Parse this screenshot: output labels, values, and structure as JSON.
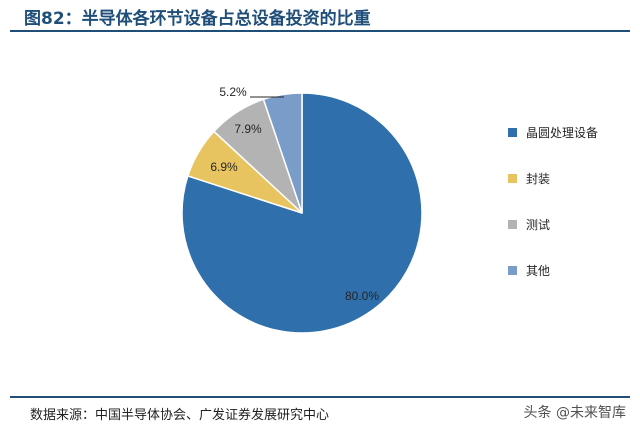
{
  "header": {
    "title": "图82：半导体各环节设备占总设备投资的比重"
  },
  "footer": {
    "source": "数据来源：中国半导体协会、广发证券发展研究中心",
    "watermark": "头条 @未来智库"
  },
  "chart_data": {
    "type": "pie",
    "start": "12 o'clock, clockwise",
    "slices": [
      {
        "name": "晶圆处理设备",
        "value": 80.0,
        "label": "80.0%",
        "color": "#2e6fac"
      },
      {
        "name": "封装",
        "value": 6.9,
        "label": "6.9%",
        "color": "#e8c460"
      },
      {
        "name": "测试",
        "value": 7.9,
        "label": "7.9%",
        "color": "#b3b3b3"
      },
      {
        "name": "其他",
        "value": 5.2,
        "label": "5.2%",
        "color": "#7a9cc8"
      }
    ],
    "legend": {
      "placement": "right",
      "items": [
        {
          "label": "晶圆处理设备",
          "color": "#2e6fac"
        },
        {
          "label": "封装",
          "color": "#e8c460"
        },
        {
          "label": "测试",
          "color": "#b3b3b3"
        },
        {
          "label": "其他",
          "color": "#7a9cc8"
        }
      ]
    }
  }
}
